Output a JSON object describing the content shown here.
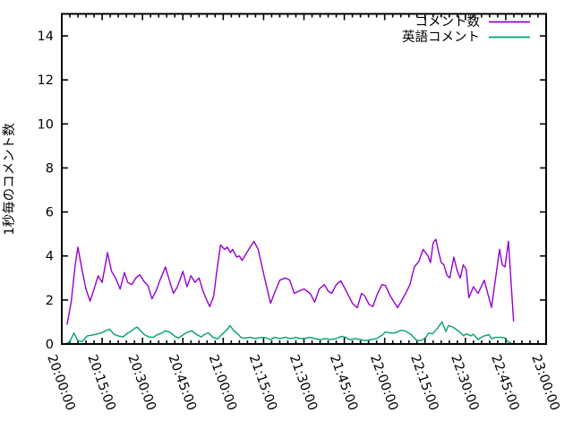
{
  "chart_data": {
    "type": "line",
    "title": "",
    "xlabel": "",
    "ylabel": "1秒毎のコメント数",
    "background": "#ffffff",
    "border_color": "#000000",
    "text_color": "#000000",
    "grid": false,
    "legend_position": "top-right-inside",
    "ylim": [
      0,
      15
    ],
    "y_ticks": [
      0,
      2,
      4,
      6,
      8,
      10,
      12,
      14
    ],
    "xlim_minutes": [
      0,
      180
    ],
    "x_tick_interval_minutes": 15,
    "x_minor_tick_minutes": 3,
    "x_tick_labels": [
      "20:00:00",
      "20:15:00",
      "20:30:00",
      "20:45:00",
      "21:00:00",
      "21:15:00",
      "21:30:00",
      "21:45:00",
      "22:00:00",
      "22:15:00",
      "22:30:00",
      "22:45:00",
      "23:00:00"
    ],
    "series": [
      {
        "name": "コメント数",
        "color": "#9400d3",
        "points": [
          [
            2,
            0.9
          ],
          [
            3.5,
            1.9
          ],
          [
            5,
            3.6
          ],
          [
            6,
            4.4
          ],
          [
            7.5,
            3.4
          ],
          [
            9,
            2.5
          ],
          [
            10.5,
            1.95
          ],
          [
            12,
            2.5
          ],
          [
            13.5,
            3.1
          ],
          [
            15,
            2.8
          ],
          [
            17,
            4.15
          ],
          [
            18.5,
            3.3
          ],
          [
            20,
            3.0
          ],
          [
            21.7,
            2.5
          ],
          [
            23.3,
            3.25
          ],
          [
            24.5,
            2.8
          ],
          [
            26,
            2.7
          ],
          [
            27.5,
            3.0
          ],
          [
            29,
            3.15
          ],
          [
            30.5,
            2.85
          ],
          [
            32,
            2.66
          ],
          [
            33.5,
            2.05
          ],
          [
            35,
            2.4
          ],
          [
            36.5,
            2.9
          ],
          [
            38.5,
            3.5
          ],
          [
            40,
            2.9
          ],
          [
            41.5,
            2.3
          ],
          [
            43,
            2.6
          ],
          [
            45,
            3.3
          ],
          [
            46.5,
            2.6
          ],
          [
            48,
            3.1
          ],
          [
            49.5,
            2.8
          ],
          [
            51,
            3.0
          ],
          [
            52.5,
            2.4
          ],
          [
            54,
            1.95
          ],
          [
            55,
            1.7
          ],
          [
            56.5,
            2.2
          ],
          [
            57.5,
            3.2
          ],
          [
            59,
            4.5
          ],
          [
            60.5,
            4.3
          ],
          [
            61.5,
            4.4
          ],
          [
            62.7,
            4.15
          ],
          [
            63.5,
            4.3
          ],
          [
            65,
            3.95
          ],
          [
            66,
            4.0
          ],
          [
            67,
            3.8
          ],
          [
            68.5,
            4.1
          ],
          [
            70,
            4.4
          ],
          [
            71.4,
            4.66
          ],
          [
            73,
            4.3
          ],
          [
            75,
            3.2
          ],
          [
            77.6,
            1.85
          ],
          [
            79,
            2.3
          ],
          [
            81,
            2.9
          ],
          [
            83,
            3.0
          ],
          [
            84.7,
            2.9
          ],
          [
            86.4,
            2.3
          ],
          [
            88,
            2.4
          ],
          [
            90,
            2.5
          ],
          [
            92.3,
            2.3
          ],
          [
            94,
            1.9
          ],
          [
            95.7,
            2.5
          ],
          [
            97.6,
            2.7
          ],
          [
            99,
            2.4
          ],
          [
            100.3,
            2.3
          ],
          [
            102,
            2.7
          ],
          [
            103.7,
            2.87
          ],
          [
            105.3,
            2.5
          ],
          [
            107,
            2.1
          ],
          [
            108,
            1.85
          ],
          [
            109.8,
            1.65
          ],
          [
            111.4,
            2.3
          ],
          [
            112.5,
            2.2
          ],
          [
            114.2,
            1.8
          ],
          [
            115.6,
            1.7
          ],
          [
            117.2,
            2.25
          ],
          [
            119,
            2.7
          ],
          [
            120.3,
            2.66
          ],
          [
            122,
            2.2
          ],
          [
            124.8,
            1.65
          ],
          [
            127.8,
            2.3
          ],
          [
            129.4,
            2.7
          ],
          [
            131,
            3.5
          ],
          [
            132.7,
            3.75
          ],
          [
            134.3,
            4.3
          ],
          [
            136.1,
            4.0
          ],
          [
            137,
            3.7
          ],
          [
            138,
            4.6
          ],
          [
            139,
            4.76
          ],
          [
            140,
            4.2
          ],
          [
            141,
            3.7
          ],
          [
            142,
            3.6
          ],
          [
            143.1,
            3.13
          ],
          [
            144.2,
            3.0
          ],
          [
            145.7,
            3.95
          ],
          [
            147,
            3.3
          ],
          [
            148.1,
            3.0
          ],
          [
            149.2,
            3.6
          ],
          [
            150.3,
            3.4
          ],
          [
            151.3,
            2.1
          ],
          [
            153,
            2.6
          ],
          [
            154.7,
            2.3
          ],
          [
            157,
            2.9
          ],
          [
            159.7,
            1.66
          ],
          [
            162.7,
            4.3
          ],
          [
            163.7,
            3.6
          ],
          [
            164.7,
            3.5
          ],
          [
            166,
            4.66
          ],
          [
            167.9,
            1.05
          ]
        ]
      },
      {
        "name": "英語コメント",
        "color": "#009e73",
        "points": [
          [
            2,
            0.05
          ],
          [
            3,
            0.1
          ],
          [
            4.5,
            0.5
          ],
          [
            6,
            0.15
          ],
          [
            7.5,
            0.1
          ],
          [
            9.5,
            0.37
          ],
          [
            11,
            0.4
          ],
          [
            12.3,
            0.43
          ],
          [
            14.6,
            0.5
          ],
          [
            16.8,
            0.63
          ],
          [
            17.8,
            0.67
          ],
          [
            19.5,
            0.43
          ],
          [
            21.2,
            0.36
          ],
          [
            22.8,
            0.32
          ],
          [
            24.6,
            0.5
          ],
          [
            25.6,
            0.57
          ],
          [
            27.3,
            0.73
          ],
          [
            28,
            0.77
          ],
          [
            29.5,
            0.57
          ],
          [
            30.6,
            0.43
          ],
          [
            32.3,
            0.32
          ],
          [
            34,
            0.3
          ],
          [
            35.6,
            0.43
          ],
          [
            37.3,
            0.5
          ],
          [
            38.4,
            0.6
          ],
          [
            40.1,
            0.54
          ],
          [
            41.8,
            0.37
          ],
          [
            43.4,
            0.27
          ],
          [
            45.6,
            0.46
          ],
          [
            46.8,
            0.54
          ],
          [
            48.4,
            0.6
          ],
          [
            50.1,
            0.43
          ],
          [
            51.8,
            0.32
          ],
          [
            53.4,
            0.46
          ],
          [
            54.6,
            0.5
          ],
          [
            56.2,
            0.3
          ],
          [
            57.9,
            0.23
          ],
          [
            59.5,
            0.43
          ],
          [
            61.8,
            0.7
          ],
          [
            62.5,
            0.84
          ],
          [
            64,
            0.6
          ],
          [
            65.5,
            0.45
          ],
          [
            66.5,
            0.3
          ],
          [
            68,
            0.27
          ],
          [
            70,
            0.3
          ],
          [
            72,
            0.25
          ],
          [
            74,
            0.3
          ],
          [
            76,
            0.28
          ],
          [
            77.5,
            0.2
          ],
          [
            79,
            0.3
          ],
          [
            81,
            0.25
          ],
          [
            83,
            0.3
          ],
          [
            85,
            0.25
          ],
          [
            87,
            0.3
          ],
          [
            88.5,
            0.25
          ],
          [
            90,
            0.25
          ],
          [
            92,
            0.3
          ],
          [
            94,
            0.25
          ],
          [
            96,
            0.2
          ],
          [
            98,
            0.25
          ],
          [
            100,
            0.2
          ],
          [
            102,
            0.25
          ],
          [
            104,
            0.35
          ],
          [
            105.5,
            0.3
          ],
          [
            107,
            0.2
          ],
          [
            109,
            0.25
          ],
          [
            111,
            0.2
          ],
          [
            113,
            0.15
          ],
          [
            115,
            0.2
          ],
          [
            117,
            0.25
          ],
          [
            119,
            0.4
          ],
          [
            120.3,
            0.55
          ],
          [
            122,
            0.5
          ],
          [
            123.7,
            0.5
          ],
          [
            126.3,
            0.63
          ],
          [
            128,
            0.57
          ],
          [
            129.7,
            0.44
          ],
          [
            132,
            0.16
          ],
          [
            133.7,
            0.16
          ],
          [
            135.3,
            0.3
          ],
          [
            136.3,
            0.5
          ],
          [
            137.7,
            0.46
          ],
          [
            139.5,
            0.7
          ],
          [
            141.3,
            1.0
          ],
          [
            142.7,
            0.57
          ],
          [
            143.7,
            0.84
          ],
          [
            145.3,
            0.77
          ],
          [
            147.7,
            0.57
          ],
          [
            149.3,
            0.37
          ],
          [
            150.3,
            0.46
          ],
          [
            152,
            0.37
          ],
          [
            153,
            0.44
          ],
          [
            154.7,
            0.2
          ],
          [
            156.5,
            0.35
          ],
          [
            158.7,
            0.43
          ],
          [
            159.8,
            0.23
          ],
          [
            161,
            0.3
          ],
          [
            163,
            0.3
          ],
          [
            164.5,
            0.28
          ],
          [
            166,
            0.09
          ],
          [
            167.3,
            0.02
          ]
        ]
      }
    ]
  }
}
